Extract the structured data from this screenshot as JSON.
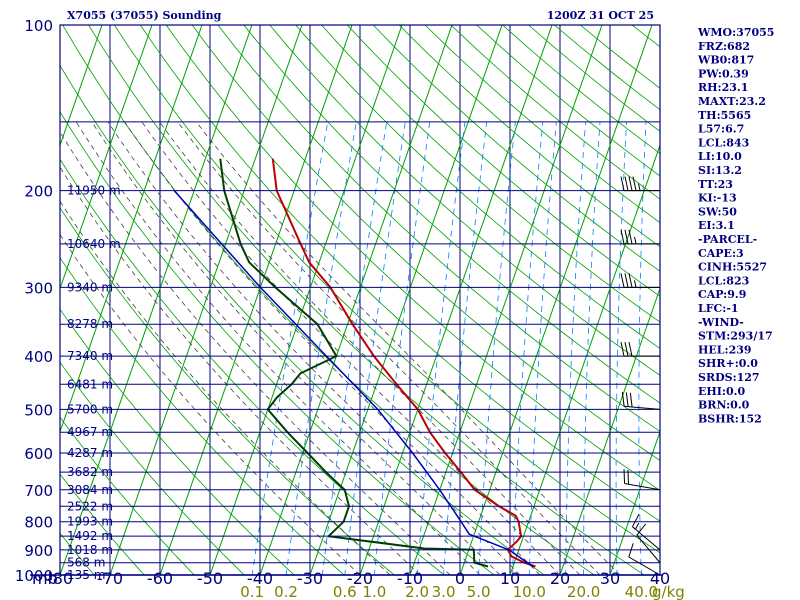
{
  "header": {
    "title": "X7055 (37055) Sounding",
    "valid_time": "1200Z 31 OCT 25"
  },
  "colors": {
    "frame": "#000080",
    "isotherm": "#000080",
    "dry_adiabat": "#00a000",
    "moist_adiabat": "#404040",
    "mixing_ratio": "#0080ff",
    "temperature": "#c00000",
    "dewpoint": "#004000",
    "parcel": "#0000c0",
    "wind": "#000000",
    "mixing_label": "#808000"
  },
  "indices": [
    "WMO:37055",
    "FRZ:682",
    "WB0:817",
    "PW:0.39",
    "RH:23.1",
    "MAXT:23.2",
    "TH:5565",
    "L57:6.7",
    "LCL:843",
    "LI:10.0",
    "SI:13.2",
    "TT:23",
    "KI:-13",
    "SW:50",
    "EI:3.1",
    "-PARCEL-",
    "CAPE:3",
    "CINH:5527",
    "LCL:823",
    "CAP:9.9",
    "LFC:-1",
    "-WIND-",
    "STM:293/17",
    "HEL:239",
    "SHR+:0.0",
    "SRDS:127",
    "EHI:0.0",
    "BRN:0.0",
    "BSHR:152"
  ],
  "chart_data": {
    "type": "line",
    "title": "X7055 (37055) Sounding",
    "subtitle": "1200Z 31 OCT 25",
    "xlabel": "",
    "ylabel": "mb",
    "xlim": [
      -80,
      40
    ],
    "ylim": [
      1000,
      100
    ],
    "log_y": true,
    "grid": true,
    "temperature_ticks": [
      {
        "v": -80,
        "t": "-80"
      },
      {
        "v": -70,
        "t": "-70"
      },
      {
        "v": -60,
        "t": "-60"
      },
      {
        "v": -50,
        "t": "-50"
      },
      {
        "v": -40,
        "t": "-40"
      },
      {
        "v": -30,
        "t": "-30"
      },
      {
        "v": -20,
        "t": "-20"
      },
      {
        "v": -10,
        "t": "-10"
      },
      {
        "v": 0,
        "t": "0"
      },
      {
        "v": 10,
        "t": "10"
      },
      {
        "v": 20,
        "t": "20"
      },
      {
        "v": 30,
        "t": "30"
      },
      {
        "v": 40,
        "t": "40"
      }
    ],
    "pressure_labels": [
      {
        "p": 1000,
        "t": "1000"
      },
      {
        "p": 900,
        "t": "900"
      },
      {
        "p": 800,
        "t": "800"
      },
      {
        "p": 700,
        "t": "700"
      },
      {
        "p": 600,
        "t": "600"
      },
      {
        "p": 500,
        "t": "500"
      },
      {
        "p": 400,
        "t": "400"
      },
      {
        "p": 300,
        "t": "300"
      },
      {
        "p": 200,
        "t": "200"
      },
      {
        "p": 100,
        "t": "100"
      }
    ],
    "pressure_lines": [
      1000,
      950,
      900,
      850,
      800,
      750,
      700,
      650,
      600,
      550,
      500,
      450,
      400,
      350,
      300,
      250,
      200,
      150,
      100
    ],
    "height_labels": [
      {
        "p": 1000,
        "t": "135 m"
      },
      {
        "p": 950,
        "t": "568 m"
      },
      {
        "p": 900,
        "t": "1018 m"
      },
      {
        "p": 850,
        "t": "1492 m"
      },
      {
        "p": 800,
        "t": "1993 m"
      },
      {
        "p": 750,
        "t": "2522 m"
      },
      {
        "p": 700,
        "t": "3084 m"
      },
      {
        "p": 650,
        "t": "3682 m"
      },
      {
        "p": 600,
        "t": "4287 m"
      },
      {
        "p": 550,
        "t": "4967 m"
      },
      {
        "p": 500,
        "t": "5700 m"
      },
      {
        "p": 450,
        "t": "6481 m"
      },
      {
        "p": 400,
        "t": "7340 m"
      },
      {
        "p": 350,
        "t": "8278 m"
      },
      {
        "p": 300,
        "t": "9340 m"
      },
      {
        "p": 250,
        "t": "10640 m"
      },
      {
        "p": 200,
        "t": "11950 m"
      }
    ],
    "mixing_ratio_labels": [
      {
        "w": 0.1,
        "t": "0.1"
      },
      {
        "w": 0.2,
        "t": "0.2"
      },
      {
        "w": 0.6,
        "t": "0.6"
      },
      {
        "w": 1.0,
        "t": "1.0"
      },
      {
        "w": 2.0,
        "t": "2.0"
      },
      {
        "w": 3.0,
        "t": "3.0"
      },
      {
        "w": 5.0,
        "t": "5.0"
      },
      {
        "w": 10.0,
        "t": "10.0"
      },
      {
        "w": 20.0,
        "t": "20.0"
      },
      {
        "w": 40.0,
        "t": "40.0"
      }
    ],
    "mixing_ratio_unit": "g/kg",
    "mixing_ratio_lines": [
      0.1,
      0.2,
      0.4,
      0.6,
      1,
      2,
      3,
      5,
      8,
      10,
      16,
      20,
      30,
      40
    ],
    "dry_adiabats_K": [
      200,
      210,
      220,
      230,
      240,
      250,
      260,
      270,
      280,
      290,
      300,
      310,
      320,
      330,
      340,
      350,
      360,
      370,
      380,
      390,
      400,
      410,
      420,
      430,
      440,
      450,
      460,
      470,
      480,
      490,
      500,
      520,
      540,
      560,
      580,
      600
    ],
    "moist_adiabats_C": [
      -20,
      -14,
      -8,
      -2,
      4,
      8,
      12,
      16,
      20,
      24,
      28,
      32
    ],
    "series": [
      {
        "key": "temperature",
        "points": [
          {
            "p": 965,
            "t": 14.5
          },
          {
            "p": 950,
            "t": 12.0
          },
          {
            "p": 925,
            "t": 9.0
          },
          {
            "p": 900,
            "t": 7.8
          },
          {
            "p": 870,
            "t": 9.0
          },
          {
            "p": 850,
            "t": 9.5
          },
          {
            "p": 800,
            "t": 8.0
          },
          {
            "p": 780,
            "t": 7.0
          },
          {
            "p": 750,
            "t": 3.0
          },
          {
            "p": 700,
            "t": -3.0
          },
          {
            "p": 650,
            "t": -7.0
          },
          {
            "p": 600,
            "t": -11.5
          },
          {
            "p": 550,
            "t": -16.0
          },
          {
            "p": 500,
            "t": -20.0
          },
          {
            "p": 450,
            "t": -26.0
          },
          {
            "p": 400,
            "t": -32.5
          },
          {
            "p": 350,
            "t": -39.0
          },
          {
            "p": 300,
            "t": -46.0
          },
          {
            "p": 270,
            "t": -52.0
          },
          {
            "p": 250,
            "t": -55.0
          },
          {
            "p": 200,
            "t": -63.5
          },
          {
            "p": 175,
            "t": -66.5
          }
        ]
      },
      {
        "key": "dewpoint",
        "points": [
          {
            "p": 965,
            "t": 5.0
          },
          {
            "p": 950,
            "t": 2.0
          },
          {
            "p": 900,
            "t": 1.0
          },
          {
            "p": 895,
            "t": -9.0
          },
          {
            "p": 850,
            "t": -29.0
          },
          {
            "p": 800,
            "t": -27.0
          },
          {
            "p": 750,
            "t": -27.0
          },
          {
            "p": 700,
            "t": -29.0
          },
          {
            "p": 650,
            "t": -34.0
          },
          {
            "p": 600,
            "t": -39.0
          },
          {
            "p": 550,
            "t": -44.5
          },
          {
            "p": 500,
            "t": -50.0
          },
          {
            "p": 475,
            "t": -49.0
          },
          {
            "p": 450,
            "t": -47.0
          },
          {
            "p": 430,
            "t": -46.0
          },
          {
            "p": 400,
            "t": -40.0
          },
          {
            "p": 350,
            "t": -46.0
          },
          {
            "p": 300,
            "t": -57.0
          },
          {
            "p": 270,
            "t": -64.0
          },
          {
            "p": 250,
            "t": -67.0
          },
          {
            "p": 200,
            "t": -74.0
          },
          {
            "p": 175,
            "t": -77.0
          }
        ]
      },
      {
        "key": "parcel",
        "points": [
          {
            "p": 965,
            "t": 14.0
          },
          {
            "p": 900,
            "t": 8.0
          },
          {
            "p": 843,
            "t": -1.0
          },
          {
            "p": 800,
            "t": -3.5
          },
          {
            "p": 700,
            "t": -10.0
          },
          {
            "p": 600,
            "t": -18.0
          },
          {
            "p": 500,
            "t": -28.0
          },
          {
            "p": 400,
            "t": -42.0
          },
          {
            "p": 300,
            "t": -60.0
          },
          {
            "p": 200,
            "t": -84.0
          }
        ]
      }
    ],
    "winds": [
      {
        "p": 200,
        "dir": 270,
        "kt": 45
      },
      {
        "p": 250,
        "dir": 270,
        "kt": 35
      },
      {
        "p": 300,
        "dir": 270,
        "kt": 35
      },
      {
        "p": 400,
        "dir": 270,
        "kt": 30
      },
      {
        "p": 500,
        "dir": 275,
        "kt": 30
      },
      {
        "p": 700,
        "dir": 280,
        "kt": 20
      },
      {
        "p": 900,
        "dir": 310,
        "kt": 15
      },
      {
        "p": 950,
        "dir": 320,
        "kt": 10
      },
      {
        "p": 1000,
        "dir": 300,
        "kt": 10
      }
    ]
  }
}
